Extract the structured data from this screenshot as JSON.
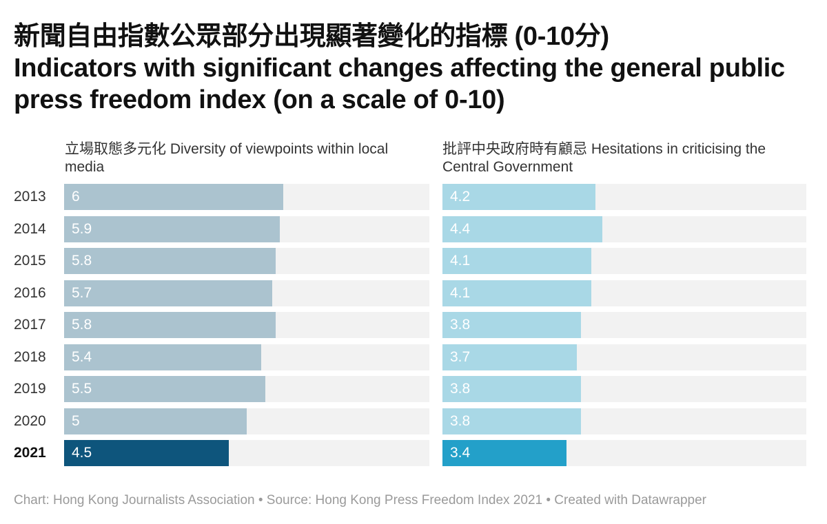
{
  "title": {
    "line1": "新聞自由指數公眾部分出現顯著變化的指標 (0-10分)",
    "line2": "Indicators with significant changes affecting the general public press freedom index (on a scale of 0-10)"
  },
  "footer": "Chart: Hong Kong Journalists Association • Source: Hong Kong Press Freedom Index 2021 • Created with Datawrapper",
  "colors": {
    "left_base": "#abc3cf",
    "left_highlight": "#0e557c",
    "right_base": "#a9d8e6",
    "right_highlight": "#23a0c9",
    "track": "#f2f2f2"
  },
  "chart_data": [
    {
      "type": "bar",
      "title": "立場取態多元化 Diversity of viewpoints within local media",
      "categories": [
        "2013",
        "2014",
        "2015",
        "2016",
        "2017",
        "2018",
        "2019",
        "2020",
        "2021"
      ],
      "values": [
        6,
        5.9,
        5.8,
        5.7,
        5.8,
        5.4,
        5.5,
        5,
        4.5
      ],
      "xlim": [
        0,
        10
      ],
      "highlight": "2021"
    },
    {
      "type": "bar",
      "title": "批評中央政府時有顧忌 Hesitations in criticising the Central Government",
      "categories": [
        "2013",
        "2014",
        "2015",
        "2016",
        "2017",
        "2018",
        "2019",
        "2020",
        "2021"
      ],
      "values": [
        4.2,
        4.4,
        4.1,
        4.1,
        3.8,
        3.7,
        3.8,
        3.8,
        3.4
      ],
      "xlim": [
        0,
        10
      ],
      "highlight": "2021"
    }
  ]
}
